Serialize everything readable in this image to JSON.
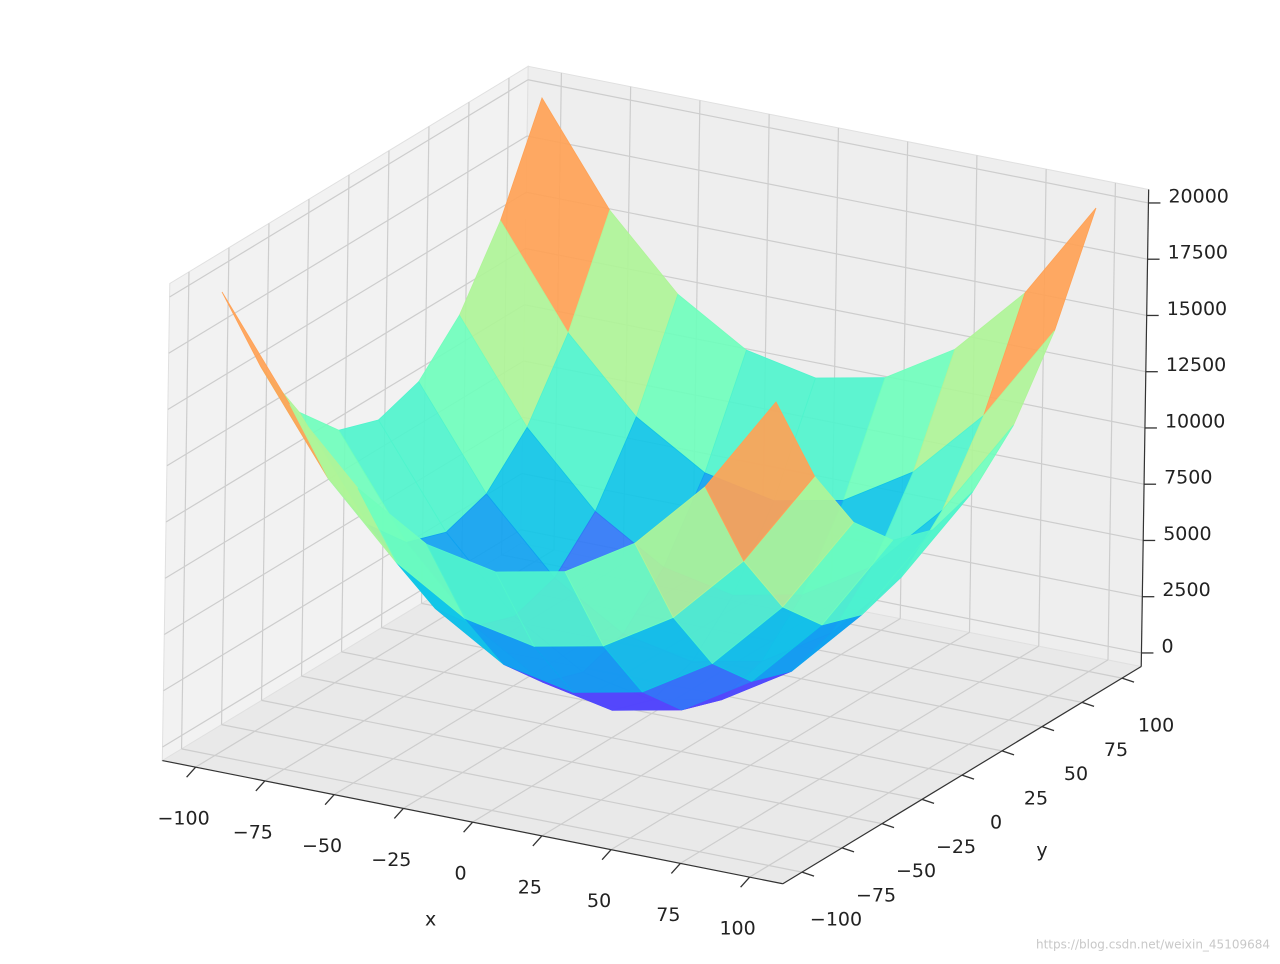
{
  "chart_data": {
    "type": "surface",
    "x": [
      -100,
      -75,
      -50,
      -25,
      0,
      25,
      50,
      75,
      100
    ],
    "y": [
      -100,
      -75,
      -50,
      -25,
      0,
      25,
      50,
      75,
      100
    ],
    "z": [
      [
        20000,
        15625,
        12500,
        10625,
        10000,
        10625,
        12500,
        15625,
        20000
      ],
      [
        15625,
        11250,
        8125,
        6250,
        5625,
        6250,
        8125,
        11250,
        15625
      ],
      [
        12500,
        8125,
        5000,
        3125,
        2500,
        3125,
        5000,
        8125,
        12500
      ],
      [
        10625,
        6250,
        3125,
        1250,
        625,
        1250,
        3125,
        6250,
        10625
      ],
      [
        10000,
        5625,
        2500,
        625,
        0,
        625,
        2500,
        5625,
        10000
      ],
      [
        10625,
        6250,
        3125,
        1250,
        625,
        1250,
        3125,
        6250,
        10625
      ],
      [
        12500,
        8125,
        5000,
        3125,
        2500,
        3125,
        5000,
        8125,
        12500
      ],
      [
        15625,
        11250,
        8125,
        6250,
        5625,
        6250,
        8125,
        11250,
        15625
      ],
      [
        20000,
        15625,
        12500,
        10625,
        10000,
        10625,
        12500,
        15625,
        20000
      ]
    ],
    "colormap": "rainbow",
    "xlabel": "x",
    "ylabel": "y",
    "xlim": [
      -100,
      100
    ],
    "ylim": [
      -100,
      100
    ],
    "zlim": [
      0,
      20000
    ],
    "xticks": [
      {
        "value": -100,
        "label": "−100"
      },
      {
        "value": -75,
        "label": "−75"
      },
      {
        "value": -50,
        "label": "−50"
      },
      {
        "value": -25,
        "label": "−25"
      },
      0,
      25,
      50,
      75,
      100
    ],
    "yticks": [
      {
        "value": -100,
        "label": "−100"
      },
      {
        "value": -75,
        "label": "−75"
      },
      {
        "value": -50,
        "label": "−50"
      },
      {
        "value": -25,
        "label": "−25"
      },
      0,
      25,
      50,
      75,
      100
    ],
    "zticks": [
      0,
      2500,
      5000,
      7500,
      10000,
      12500,
      15000,
      17500,
      20000
    ],
    "grid": true
  },
  "watermark": "https://blog.csdn.net/weixin_45109684"
}
